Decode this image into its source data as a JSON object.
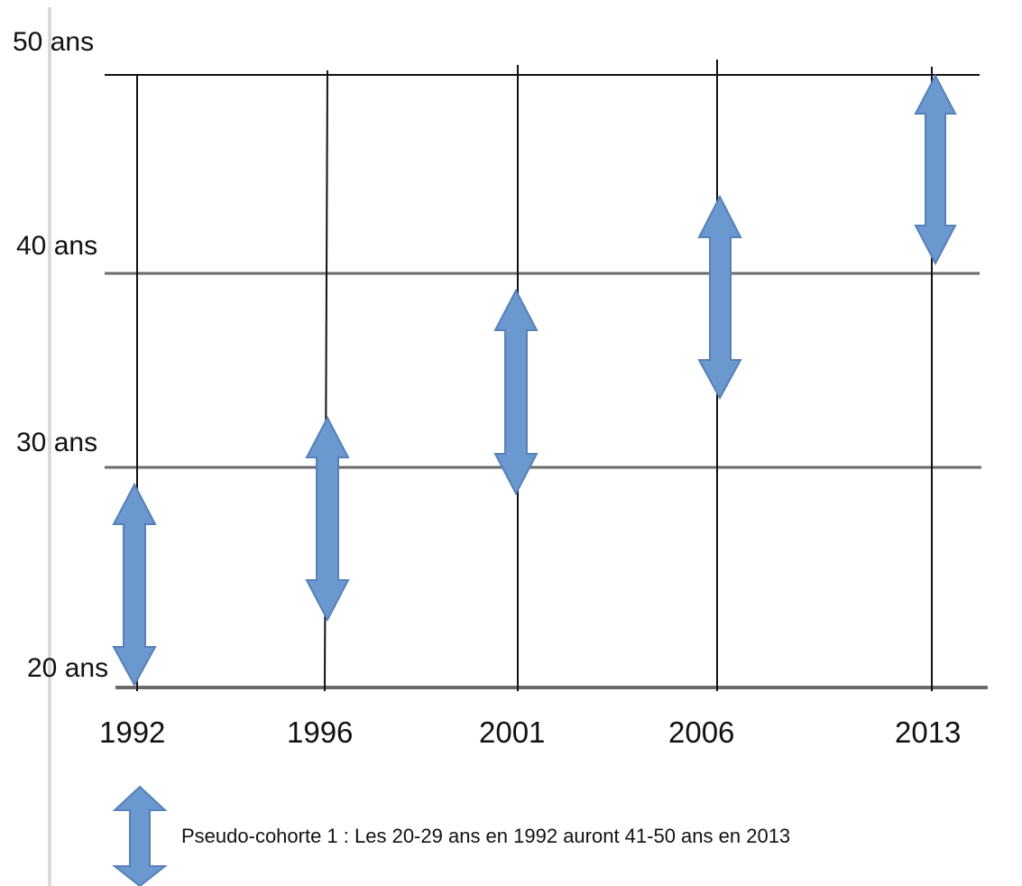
{
  "diagram": {
    "age_labels": [
      "50 ans",
      "40 ans",
      "30 ans",
      "20 ans"
    ],
    "years": [
      "1992",
      "1996",
      "2001",
      "2006",
      "2013"
    ],
    "cohort_arrows": [
      {
        "year": "1992",
        "from_age": 20,
        "to_age": 29
      },
      {
        "year": "1996",
        "from_age": 23,
        "to_age": 32
      },
      {
        "year": "2001",
        "from_age": 28,
        "to_age": 37
      },
      {
        "year": "2006",
        "from_age": 33,
        "to_age": 42
      },
      {
        "year": "2013",
        "from_age": 41,
        "to_age": 50
      }
    ],
    "legend": {
      "text": "Pseudo-cohorte 1 : Les 20-29 ans en 1992 auront 41-50 ans en 2013"
    },
    "colors": {
      "arrow_fill": "#6b98cf",
      "arrow_stroke": "#5680b8",
      "grid_horizontal": "#6a6a6a",
      "grid_vertical": "#111111",
      "left_rule": "#d9d9d9"
    }
  }
}
